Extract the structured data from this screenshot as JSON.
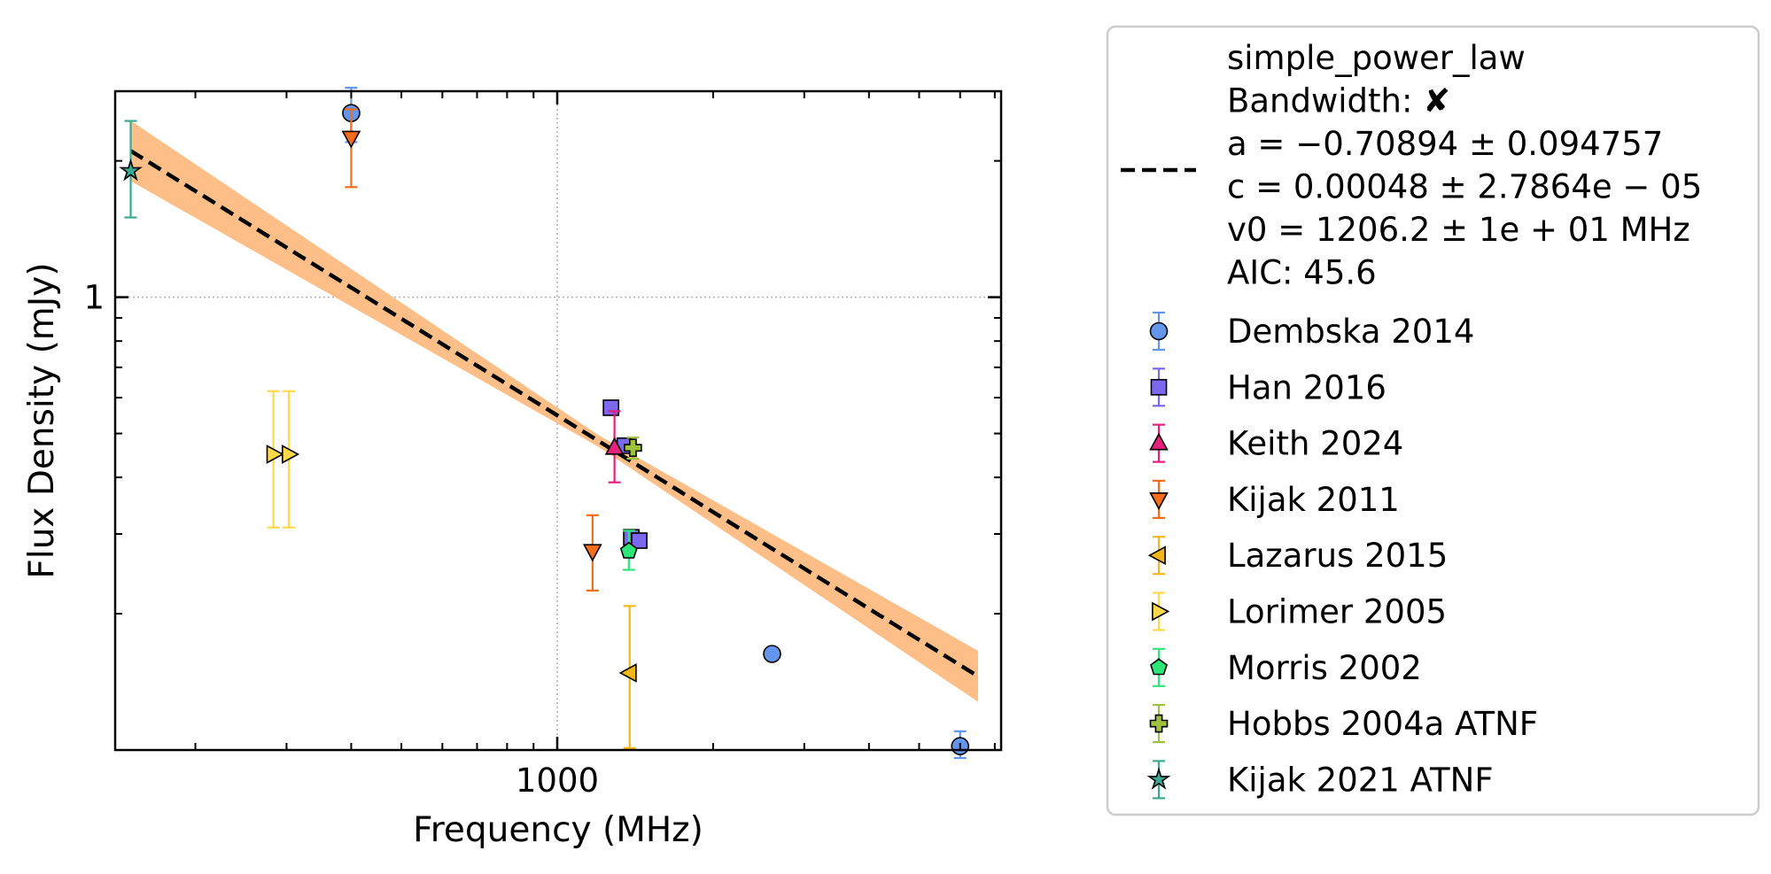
{
  "chart_data": {
    "type": "scatter",
    "title": "",
    "xlabel": "Frequency (MHz)",
    "ylabel": "Flux Density (mJy)",
    "x_scale": "log",
    "y_scale": "log",
    "xlim": [
      140,
      7200
    ],
    "ylim": [
      0.1,
      2.85
    ],
    "x_ticks": [
      {
        "value": 1000,
        "label": "1000"
      }
    ],
    "y_ticks": [
      {
        "value": 1,
        "label": "1"
      }
    ],
    "grid": true,
    "legend_position": "outside-right",
    "fit": {
      "model": "simple_power_law",
      "a": -0.70894,
      "c": 0.00048,
      "v0": 1206.2,
      "x_range": [
        150,
        6500
      ],
      "line_color": "#000000",
      "band_color": "#fdbf87",
      "legend_lines": [
        "simple_power_law",
        "Bandwidth: ✘",
        "a = −0.70894 ± 0.094757",
        "c = 0.00048 ± 2.7864e − 05",
        "v0 = 1206.2 ± 1e + 01 MHz",
        "AIC: 45.6"
      ]
    },
    "series": [
      {
        "name": "Dembska 2014",
        "marker": "circle",
        "color": "#6495ed",
        "points": [
          {
            "x": 400,
            "y": 2.55,
            "err": [
              2.2,
              2.9
            ]
          },
          {
            "x": 2600,
            "y": 0.163
          },
          {
            "x": 6000,
            "y": 0.102,
            "err": [
              0.096,
              0.11
            ]
          }
        ]
      },
      {
        "name": "Han 2016",
        "marker": "square",
        "color": "#7b68ee",
        "points": [
          {
            "x": 1270,
            "y": 0.57
          },
          {
            "x": 1350,
            "y": 0.47
          },
          {
            "x": 1390,
            "y": 0.295
          },
          {
            "x": 1440,
            "y": 0.29
          }
        ]
      },
      {
        "name": "Keith 2024",
        "marker": "triangle-up",
        "color": "#e4217d",
        "points": [
          {
            "x": 1290,
            "y": 0.465,
            "err": [
              0.39,
              0.56
            ]
          }
        ]
      },
      {
        "name": "Kijak 2011",
        "marker": "triangle-down",
        "color": "#f46d1a",
        "points": [
          {
            "x": 400,
            "y": 2.25,
            "err": [
              1.75,
              2.6
            ]
          },
          {
            "x": 1170,
            "y": 0.275,
            "err": [
              0.225,
              0.33
            ]
          }
        ]
      },
      {
        "name": "Lazarus 2015",
        "marker": "triangle-left",
        "color": "#f5b61a",
        "points": [
          {
            "x": 1380,
            "y": 0.148,
            "err": [
              0.101,
              0.208
            ]
          }
        ]
      },
      {
        "name": "Lorimer 2005",
        "marker": "triangle-right",
        "color": "#ffd94a",
        "points": [
          {
            "x": 283,
            "y": 0.45,
            "err": [
              0.31,
              0.62
            ]
          },
          {
            "x": 303,
            "y": 0.45,
            "err": [
              0.31,
              0.62
            ]
          }
        ]
      },
      {
        "name": "Morris 2002",
        "marker": "pentagon",
        "color": "#2ee57a",
        "points": [
          {
            "x": 1375,
            "y": 0.275,
            "err": [
              0.25,
              0.305
            ]
          }
        ]
      },
      {
        "name": "Hobbs 2004a ATNF",
        "marker": "plus",
        "color": "#a0c040",
        "points": [
          {
            "x": 1400,
            "y": 0.465,
            "err": [
              0.44,
              0.49
            ]
          }
        ]
      },
      {
        "name": "Kijak 2021 ATNF",
        "marker": "star",
        "color": "#3aaa95",
        "points": [
          {
            "x": 150,
            "y": 1.9,
            "err": [
              1.5,
              2.45
            ]
          }
        ]
      }
    ]
  }
}
